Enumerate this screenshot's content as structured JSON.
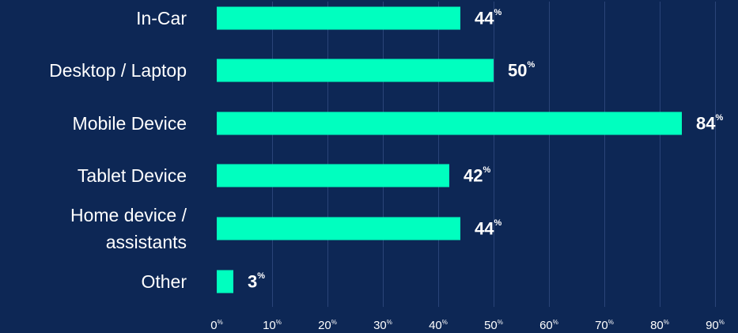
{
  "chart_data": {
    "type": "bar",
    "orientation": "horizontal",
    "categories": [
      "In-Car",
      "Desktop / Laptop",
      "Mobile Device",
      "Tablet Device",
      "Home device / assistants",
      "Other"
    ],
    "category_lines": [
      [
        "In-Car"
      ],
      [
        "Desktop / Laptop"
      ],
      [
        "Mobile Device"
      ],
      [
        "Tablet Device"
      ],
      [
        "Home device /",
        "assistants"
      ],
      [
        "Other"
      ]
    ],
    "values": [
      44,
      50,
      84,
      42,
      44,
      3
    ],
    "value_unit": "%",
    "xticks": [
      0,
      10,
      20,
      30,
      40,
      50,
      60,
      70,
      80,
      90
    ],
    "xlim": [
      0,
      90
    ],
    "grid": true,
    "title": "",
    "xlabel": "",
    "ylabel": "",
    "colors": {
      "background": "#0d2755",
      "bar": "#00ffbf",
      "text": "#ffffff",
      "grid": "#2a4478"
    }
  }
}
